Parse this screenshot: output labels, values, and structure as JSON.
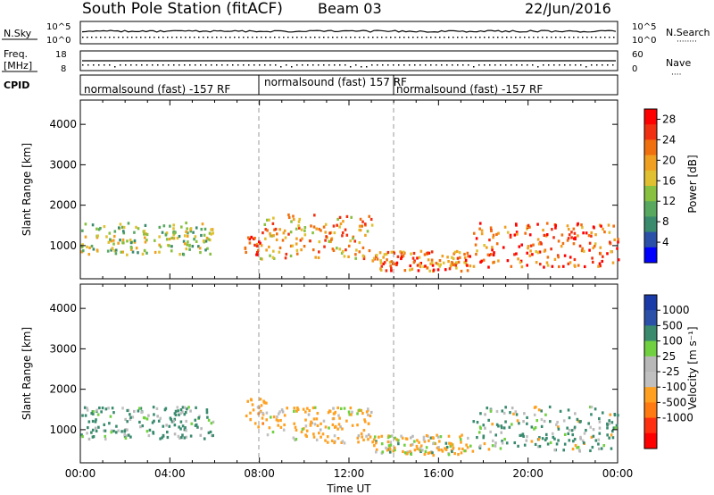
{
  "header": {
    "station": "South Pole Station (fitACF)",
    "beam": "Beam 03",
    "date": "22/Jun/2016"
  },
  "noise_panel": {
    "left_label": "N.Sky",
    "left_ticks": [
      "10^5",
      "10^0"
    ],
    "right_label": "N.Search",
    "right_ticks": [
      "10^5",
      "10^0"
    ]
  },
  "freq_panel": {
    "left_label_1": "Freq.",
    "left_label_2": "[MHz]",
    "left_ticks": [
      "18",
      "8"
    ],
    "right_label": "Nave",
    "right_ticks": [
      "60",
      "0"
    ]
  },
  "cpid_panel": {
    "label": "CPID",
    "segments": [
      {
        "text": "normalsound (fast) -157 RF",
        "start_hour": 0
      },
      {
        "text": "normalsound (fast) 157 RF",
        "start_hour": 7.9
      },
      {
        "text": "normalsound (fast) -157 RF",
        "start_hour": 13.9
      }
    ]
  },
  "colors": {
    "power": [
      "#0000ff",
      "#2b50a8",
      "#3a8a6e",
      "#58a860",
      "#88c040",
      "#e0c030",
      "#f0a020",
      "#f07010",
      "#f03010",
      "#ff0000"
    ],
    "velocity": [
      "#ff0000",
      "#ff3010",
      "#ff7a10",
      "#ffa020",
      "#c0c0c0",
      "#b8b8b8",
      "#70d040",
      "#3a8a6e",
      "#2b50a8",
      "#1a3aa8"
    ]
  },
  "chart_data": [
    {
      "type": "heatmap",
      "title": "Power",
      "xlabel": "",
      "ylabel": "Slant Range [km]",
      "xlim": [
        "00:00",
        "00:00"
      ],
      "ylim": [
        180,
        4600
      ],
      "ytick_labels": [
        "1000",
        "2000",
        "3000",
        "4000"
      ],
      "colorbar_label": "Power [dB]",
      "colorbar_ticks": [
        "4",
        "8",
        "12",
        "16",
        "20",
        "24",
        "28"
      ],
      "colorbar_range": [
        0,
        30
      ],
      "scatter_bands": [
        {
          "t0": 0.0,
          "t1": 5.9,
          "r0": 800,
          "r1": 1600,
          "value": 14
        },
        {
          "t0": 7.3,
          "t1": 8.0,
          "r0": 800,
          "r1": 1300,
          "value": 26
        },
        {
          "t0": 8.0,
          "t1": 13.0,
          "r0": 700,
          "r1": 1800,
          "value": 20
        },
        {
          "t0": 13.0,
          "t1": 17.5,
          "r0": 400,
          "r1": 900,
          "value": 22
        },
        {
          "t0": 17.5,
          "t1": 24.0,
          "r0": 500,
          "r1": 1600,
          "value": 24
        }
      ]
    },
    {
      "type": "heatmap",
      "title": "Velocity",
      "xlabel": "Time UT",
      "ylabel": "Slant Range [km]",
      "xlim": [
        "00:00",
        "00:00"
      ],
      "ylim": [
        180,
        4600
      ],
      "xtick_labels": [
        "00:00",
        "04:00",
        "08:00",
        "12:00",
        "16:00",
        "20:00",
        "00:00"
      ],
      "ytick_labels": [
        "1000",
        "2000",
        "3000",
        "4000"
      ],
      "colorbar_label": "Velocity [m s⁻¹]",
      "colorbar_ticks": [
        "1000",
        "500",
        "100",
        "25",
        "-25",
        "-100",
        "-500",
        "-1000"
      ],
      "colorbar_range": [
        -1000,
        1000
      ],
      "scatter_bands": [
        {
          "t0": 0.0,
          "t1": 5.9,
          "r0": 800,
          "r1": 1600,
          "value": 150
        },
        {
          "t0": 7.3,
          "t1": 8.3,
          "r0": 1100,
          "r1": 1800,
          "value": -300
        },
        {
          "t0": 8.3,
          "t1": 13.0,
          "r0": 700,
          "r1": 1600,
          "value": -150
        },
        {
          "t0": 13.0,
          "t1": 17.5,
          "r0": 400,
          "r1": 900,
          "value": -120
        },
        {
          "t0": 17.5,
          "t1": 24.0,
          "r0": 500,
          "r1": 1600,
          "value": 100
        }
      ]
    }
  ]
}
